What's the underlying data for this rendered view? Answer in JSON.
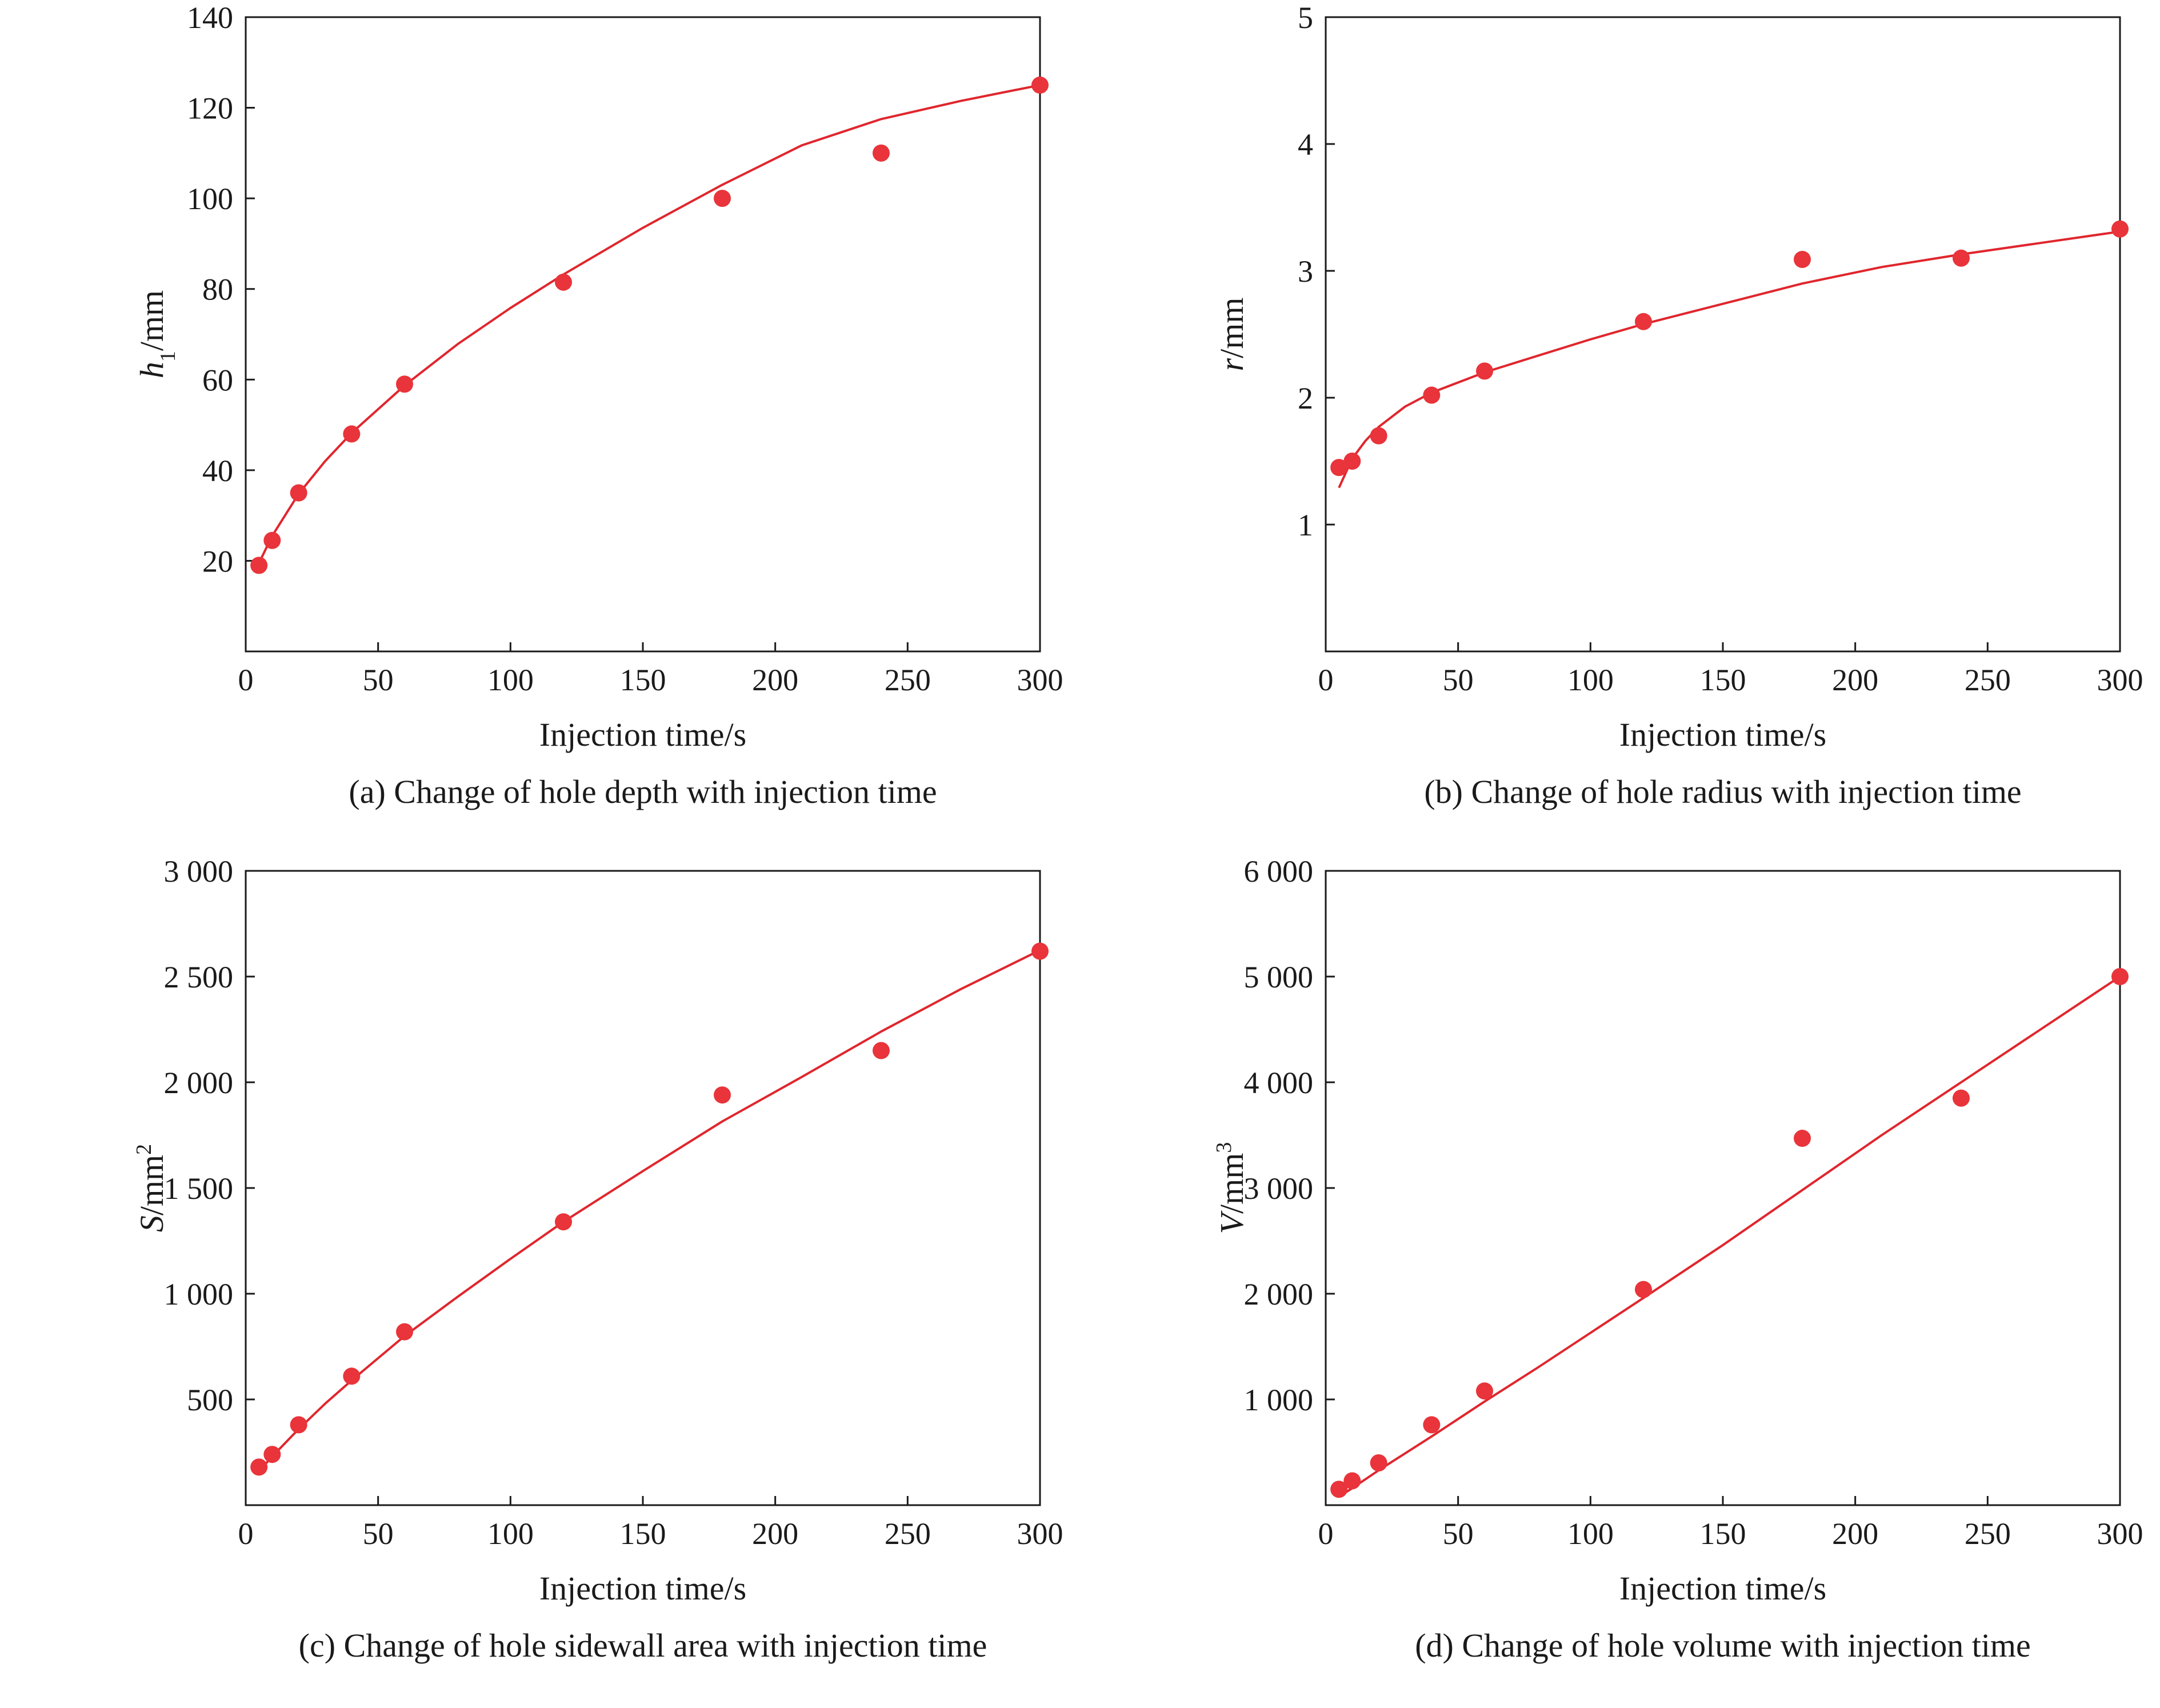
{
  "figure": {
    "marker_color": "#e8343a",
    "line_color": "#e0262d"
  },
  "chart_data": [
    {
      "type": "scatter",
      "caption": "(a) Change of hole depth with injection time",
      "xlabel": "Injection time/s",
      "ylabel_main": "h",
      "ylabel_sub": "1",
      "ylabel_sup": "",
      "ylabel_unit": "/mm",
      "xlim": [
        0,
        300
      ],
      "ylim": [
        0,
        140
      ],
      "x_ticks": [
        0,
        50,
        100,
        150,
        200,
        250,
        300
      ],
      "x_tick_labels": [
        "0",
        "50",
        "100",
        "150",
        "200",
        "250",
        "300"
      ],
      "y_ticks": [
        20,
        40,
        60,
        80,
        100,
        120,
        140
      ],
      "y_tick_labels": [
        "20",
        "40",
        "60",
        "80",
        "100",
        "120",
        "140"
      ],
      "series": [
        {
          "x": [
            5,
            10,
            20,
            40,
            60,
            120,
            180,
            240,
            300
          ],
          "y": [
            19,
            24.5,
            35,
            48,
            59,
            81.5,
            100,
            110,
            125
          ]
        }
      ],
      "fit_curve": {
        "x": [
          5,
          10,
          20,
          30,
          40,
          60,
          80,
          100,
          120,
          150,
          180,
          210,
          240,
          270,
          300
        ],
        "y": [
          19.5,
          25.5,
          34.8,
          42,
          48.2,
          58.7,
          67.8,
          75.8,
          83.2,
          93.5,
          103,
          111.7,
          117.5,
          121.5,
          125
        ]
      },
      "grid": false
    },
    {
      "type": "scatter",
      "caption": "(b) Change of hole radius with injection time",
      "xlabel": "Injection time/s",
      "ylabel_main": "r",
      "ylabel_sub": "",
      "ylabel_sup": "",
      "ylabel_unit": "/mm",
      "xlim": [
        0,
        300
      ],
      "ylim": [
        0,
        5
      ],
      "x_ticks": [
        0,
        50,
        100,
        150,
        200,
        250,
        300
      ],
      "x_tick_labels": [
        "0",
        "50",
        "100",
        "150",
        "200",
        "250",
        "300"
      ],
      "y_ticks": [
        1,
        2,
        3,
        4,
        5
      ],
      "y_tick_labels": [
        "1",
        "2",
        "3",
        "4",
        "5"
      ],
      "series": [
        {
          "x": [
            5,
            10,
            20,
            40,
            60,
            120,
            180,
            240,
            300
          ],
          "y": [
            1.45,
            1.5,
            1.7,
            2.02,
            2.21,
            2.6,
            3.09,
            3.1,
            3.33
          ]
        }
      ],
      "fit_curve": {
        "x": [
          5,
          10,
          15,
          20,
          30,
          40,
          60,
          80,
          100,
          120,
          150,
          180,
          210,
          240,
          270,
          300
        ],
        "y": [
          1.29,
          1.52,
          1.66,
          1.77,
          1.93,
          2.04,
          2.2,
          2.33,
          2.46,
          2.58,
          2.74,
          2.9,
          3.03,
          3.13,
          3.22,
          3.31
        ]
      },
      "grid": false
    },
    {
      "type": "scatter",
      "caption": "(c) Change of hole sidewall area with injection time",
      "xlabel": "Injection time/s",
      "ylabel_main": "S",
      "ylabel_sub": "",
      "ylabel_sup": "2",
      "ylabel_unit": "/mm",
      "xlim": [
        0,
        300
      ],
      "ylim": [
        0,
        3000
      ],
      "x_ticks": [
        0,
        50,
        100,
        150,
        200,
        250,
        300
      ],
      "x_tick_labels": [
        "0",
        "50",
        "100",
        "150",
        "200",
        "250",
        "300"
      ],
      "y_ticks": [
        500,
        1000,
        1500,
        2000,
        2500,
        3000
      ],
      "y_tick_labels": [
        "500",
        "1 000",
        "1 500",
        "2 000",
        "2 500",
        "3 000"
      ],
      "series": [
        {
          "x": [
            5,
            10,
            20,
            40,
            60,
            120,
            180,
            240,
            300
          ],
          "y": [
            180,
            240,
            380,
            610,
            820,
            1340,
            1940,
            2150,
            2620
          ]
        }
      ],
      "fit_curve": {
        "x": [
          5,
          10,
          20,
          30,
          40,
          60,
          80,
          100,
          120,
          150,
          180,
          210,
          240,
          270,
          300
        ],
        "y": [
          160,
          230,
          360,
          480,
          590,
          800,
          985,
          1165,
          1340,
          1580,
          1815,
          2025,
          2240,
          2440,
          2625
        ]
      },
      "grid": false
    },
    {
      "type": "scatter",
      "caption": "(d) Change of hole volume with injection time",
      "xlabel": "Injection time/s",
      "ylabel_main": "V",
      "ylabel_sub": "",
      "ylabel_sup": "3",
      "ylabel_unit": "/mm",
      "xlim": [
        0,
        300
      ],
      "ylim": [
        0,
        6000
      ],
      "x_ticks": [
        0,
        50,
        100,
        150,
        200,
        250,
        300
      ],
      "x_tick_labels": [
        "0",
        "50",
        "100",
        "150",
        "200",
        "250",
        "300"
      ],
      "y_ticks": [
        1000,
        2000,
        3000,
        4000,
        5000,
        6000
      ],
      "y_tick_labels": [
        "1 000",
        "2 000",
        "3 000",
        "4 000",
        "5 000",
        "6 000"
      ],
      "series": [
        {
          "x": [
            5,
            10,
            20,
            40,
            60,
            120,
            180,
            240,
            300
          ],
          "y": [
            150,
            230,
            400,
            760,
            1080,
            2040,
            3470,
            3850,
            5000
          ]
        }
      ],
      "fit_curve": {
        "x": [
          5,
          10,
          20,
          40,
          60,
          80,
          100,
          120,
          150,
          180,
          210,
          240,
          270,
          300
        ],
        "y": [
          80,
          160,
          330,
          650,
          980,
          1300,
          1630,
          1960,
          2460,
          2980,
          3500,
          4000,
          4500,
          5000
        ]
      },
      "grid": false
    }
  ]
}
